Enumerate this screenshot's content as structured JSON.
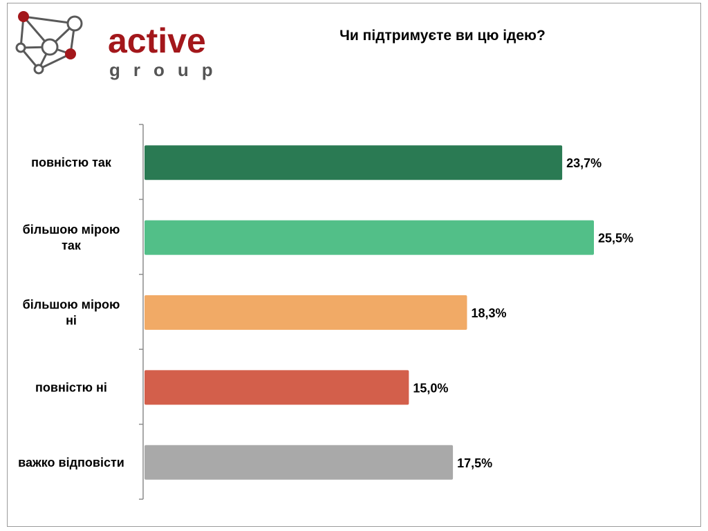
{
  "brand": {
    "name": "active",
    "sub": "group"
  },
  "chart_data": {
    "type": "bar",
    "orientation": "horizontal",
    "title": "Чи підтримуєте ви цю ідею?",
    "categories": [
      [
        "повністю так"
      ],
      [
        "більшою мірою",
        "так"
      ],
      [
        "більшою мірою",
        "ні"
      ],
      [
        "повністю ні"
      ],
      [
        "важко відповісти"
      ]
    ],
    "values": [
      23.7,
      25.5,
      18.3,
      15.0,
      17.5
    ],
    "labels": [
      "23,7%",
      "25,5%",
      "18,3%",
      "15,0%",
      "17,5%"
    ],
    "colors": [
      "#2a7a53",
      "#52bf88",
      "#f1aa66",
      "#d35f4b",
      "#a9a9a9"
    ],
    "xlim": [
      0,
      25.5
    ],
    "grid": false,
    "legend": "none"
  }
}
